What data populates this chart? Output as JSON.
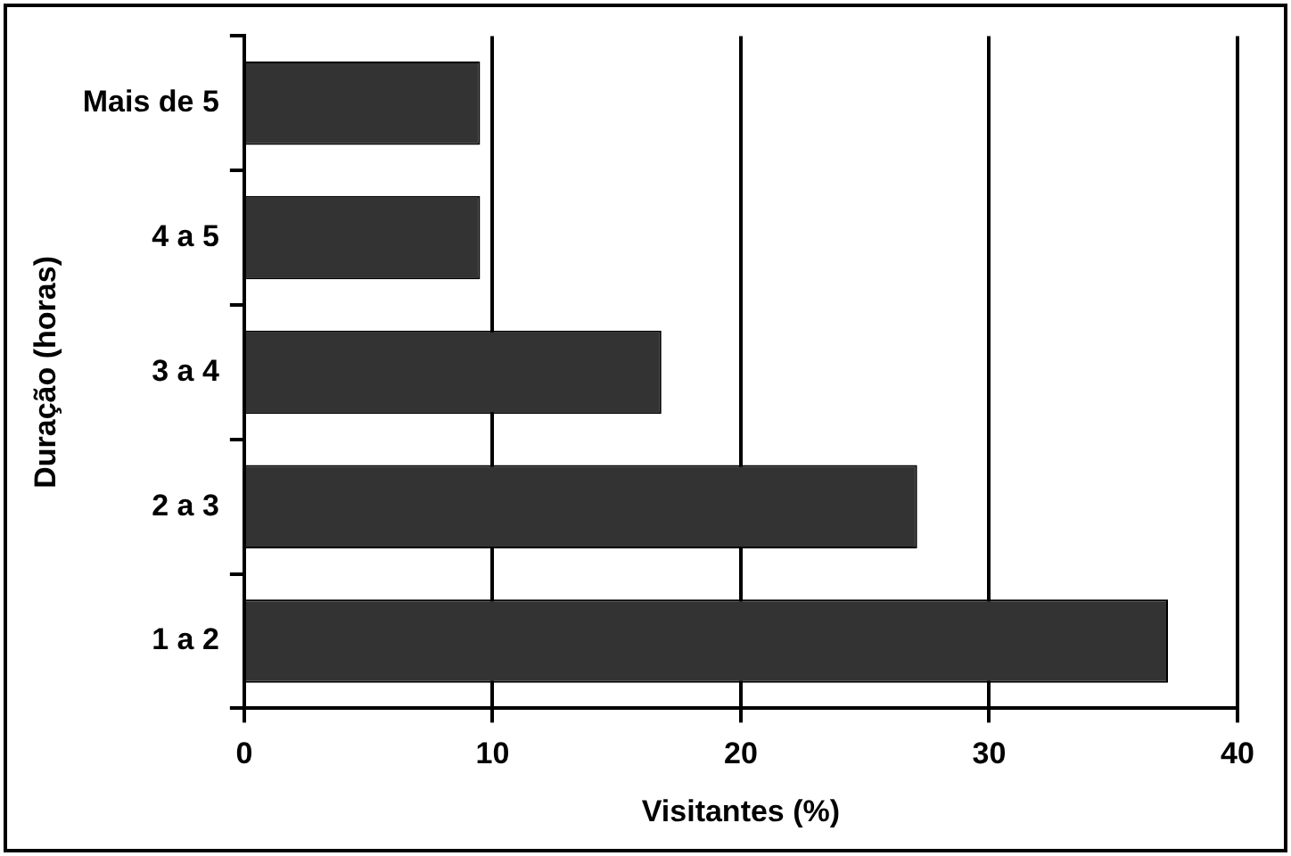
{
  "chart_data": {
    "type": "bar",
    "orientation": "horizontal",
    "xlabel": "Visitantes (%)",
    "ylabel": "Duração (horas)",
    "categories": [
      "Mais de 5",
      "4 a 5",
      "3 a 4",
      "2 a 3",
      "1 a 2"
    ],
    "values": [
      9.5,
      9.5,
      16.8,
      27.1,
      37.2
    ],
    "color": "#333333",
    "xlim": [
      0,
      40
    ],
    "xticks": [
      0,
      10,
      20,
      30,
      40
    ],
    "grid": "x",
    "legend": false
  }
}
